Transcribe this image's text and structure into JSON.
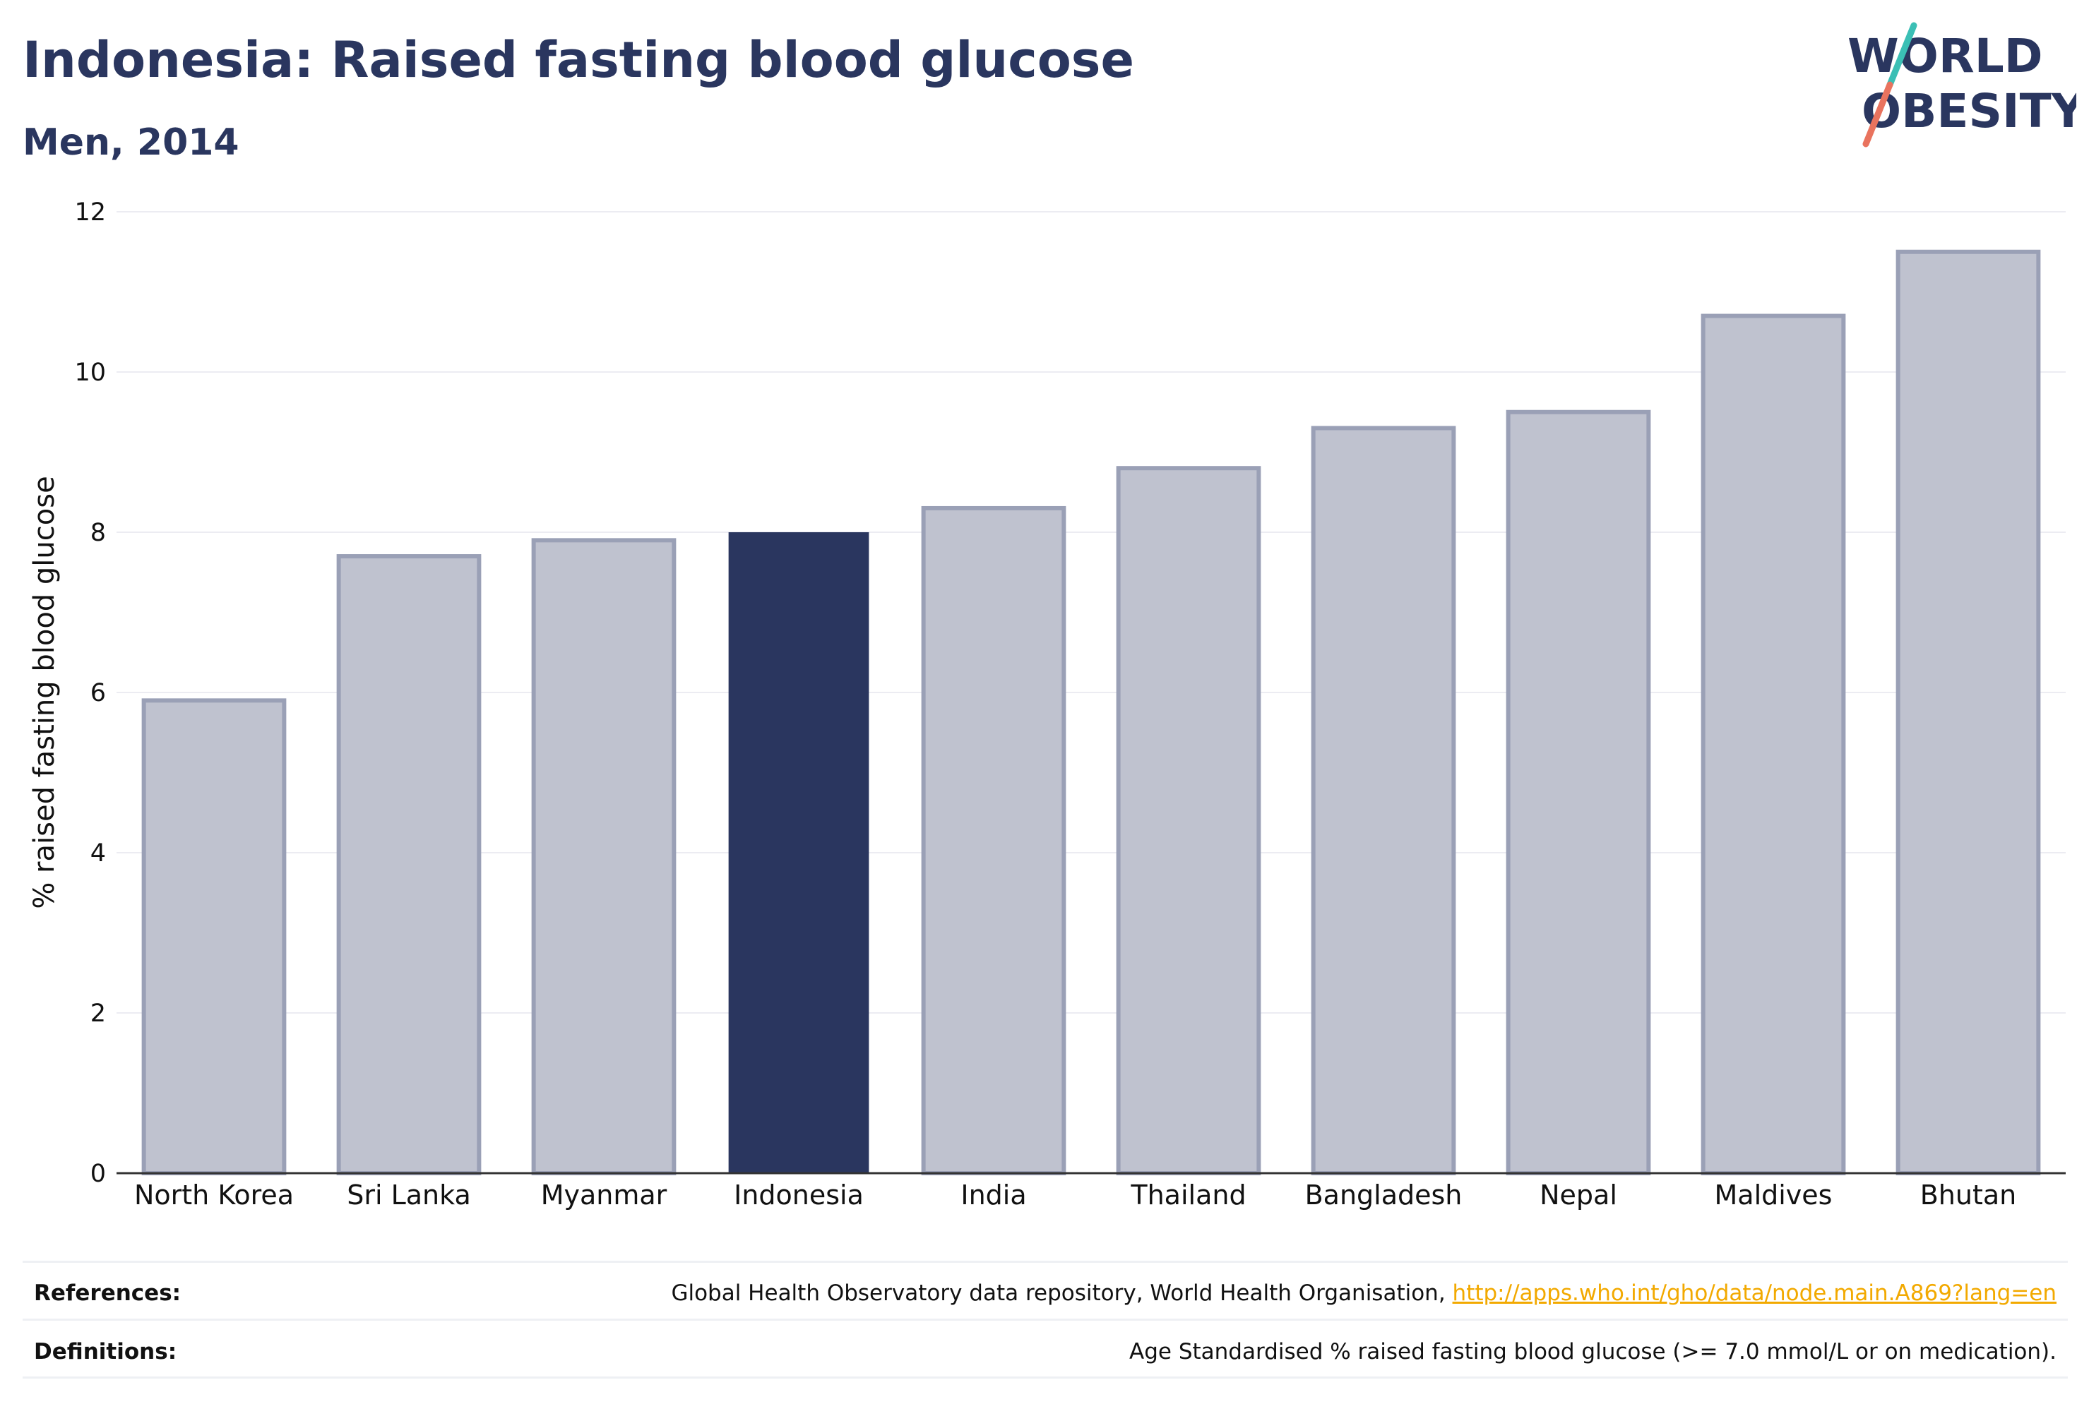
{
  "header": {
    "title": "Indonesia: Raised fasting blood glucose",
    "subtitle": "Men, 2014"
  },
  "logo": {
    "line1": "WORLD",
    "line2": "OBESITY",
    "text_color": "#2a365f",
    "slash_top_color": "#3bbfb5",
    "slash_bottom_color": "#e9735e"
  },
  "colors": {
    "highlight": "#2a365f",
    "other": "#bfc2cf",
    "other_border": "#9aa0b6",
    "grid": "#ececf2",
    "axis": "#333333",
    "link": "#f2a900"
  },
  "chart_data": {
    "type": "bar",
    "categories": [
      "North Korea",
      "Sri Lanka",
      "Myanmar",
      "Indonesia",
      "India",
      "Thailand",
      "Bangladesh",
      "Nepal",
      "Maldives",
      "Bhutan"
    ],
    "values": [
      5.9,
      7.7,
      7.9,
      8.0,
      8.3,
      8.8,
      9.3,
      9.5,
      10.7,
      11.5
    ],
    "highlight": "Indonesia",
    "ylabel": "% raised fasting blood glucose",
    "xlabel": "",
    "ylim": [
      0,
      12
    ],
    "yticks": [
      0,
      2,
      4,
      6,
      8,
      10,
      12
    ],
    "grid": true
  },
  "footer": {
    "references_label": "References:",
    "references_text": "Global Health Observatory data repository, World Health Organisation, ",
    "references_link": "http://apps.who.int/gho/data/node.main.A869?lang=en",
    "definitions_label": "Definitions:",
    "definitions_text": "Age Standardised % raised fasting blood glucose (>= 7.0 mmol/L or on medication)."
  }
}
